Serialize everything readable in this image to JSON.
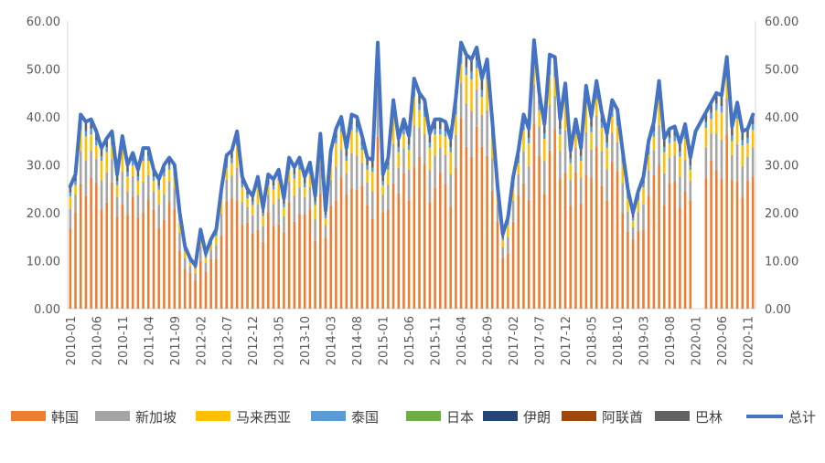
{
  "chart_data": {
    "type": "bar",
    "stacked": true,
    "y_range": [
      0,
      60
    ],
    "y_ticks": [
      "0.00",
      "10.00",
      "20.00",
      "30.00",
      "40.00",
      "50.00",
      "60.00"
    ],
    "y_right_ticks": [
      "0.00",
      "10.00",
      "20.00",
      "30.00",
      "40.00",
      "50.00",
      "60.00"
    ],
    "x_ticks": [
      "2010-01",
      "2010-06",
      "2010-11",
      "2011-04",
      "2011-09",
      "2012-02",
      "2012-07",
      "2012-12",
      "2013-05",
      "2013-10",
      "2014-03",
      "2014-08",
      "2015-01",
      "2015-06",
      "2015-11",
      "2016-04",
      "2016-09",
      "2017-02",
      "2017-07",
      "2017-12",
      "2018-05",
      "2018-10",
      "2019-03",
      "2019-08",
      "2020-01",
      "2020-06",
      "2020-11"
    ],
    "x_start": "2010-01",
    "x_end": "2020-12",
    "legend": [
      "韩国",
      "新加坡",
      "马来西亚",
      "泰国",
      "日本",
      "伊朗",
      "阿联酋",
      "巴林",
      "总计"
    ],
    "colors": {
      "韩国": "#ED7D31",
      "新加坡": "#A5A5A5",
      "马来西亚": "#FFC000",
      "泰国": "#5B9BD5",
      "日本": "#70AD47",
      "伊朗": "#264478",
      "阿联酋": "#9E480E",
      "巴林": "#636363",
      "总计": "#4472C4"
    },
    "totals": [
      25.5,
      28.0,
      40.5,
      39.0,
      39.5,
      37.0,
      33.5,
      35.5,
      37.0,
      28.0,
      36.0,
      30.0,
      32.5,
      29.0,
      33.5,
      33.5,
      29.0,
      27.0,
      30.0,
      31.5,
      30.0,
      20.0,
      13.0,
      10.5,
      9.0,
      16.5,
      11.5,
      14.5,
      16.5,
      25.0,
      32.0,
      33.0,
      37.0,
      27.5,
      25.0,
      23.5,
      27.5,
      21.0,
      28.0,
      27.0,
      29.0,
      23.0,
      31.5,
      29.5,
      31.5,
      27.5,
      30.5,
      23.5,
      36.5,
      20.5,
      33.0,
      37.5,
      40.0,
      33.5,
      40.5,
      40.0,
      36.0,
      31.5,
      31.0,
      55.5,
      28.0,
      31.5,
      43.5,
      35.5,
      39.5,
      36.0,
      48.0,
      45.0,
      43.5,
      36.5,
      39.5,
      39.5,
      39.0,
      35.5,
      44.0,
      55.5,
      53.0,
      52.0,
      54.5,
      48.0,
      52.0,
      39.0,
      25.5,
      15.5,
      19.0,
      27.5,
      33.0,
      40.5,
      37.5,
      56.0,
      45.0,
      38.5,
      53.0,
      52.5,
      39.5,
      47.0,
      33.0,
      39.5,
      33.5,
      46.5,
      40.0,
      47.5,
      41.0,
      36.5,
      43.5,
      41.5,
      33.0,
      25.0,
      20.0,
      24.5,
      27.5,
      35.0,
      39.0,
      47.5,
      35.5,
      37.5,
      38.0,
      34.5,
      38.5,
      31.5,
      37.0,
      39.0,
      41.0,
      43.0,
      45.0,
      44.5,
      52.5,
      38.0,
      43.0,
      37.0,
      37.5,
      40.5
    ],
    "korea_share": 0.66,
    "singapore_share": 0.16,
    "malaysia_share": 0.1,
    "gaps": [
      "2020-01",
      "2020-02"
    ]
  }
}
